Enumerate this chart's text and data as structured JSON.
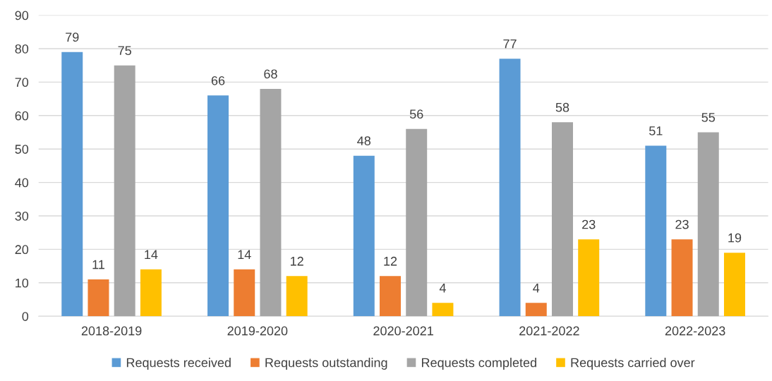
{
  "chart_data": {
    "type": "bar",
    "categories": [
      "2018-2019",
      "2019-2020",
      "2020-2021",
      "2021-2022",
      "2022-2023"
    ],
    "series": [
      {
        "name": "Requests received",
        "color": "#5b9bd5",
        "values": [
          79,
          66,
          48,
          77,
          51
        ]
      },
      {
        "name": "Requests outstanding",
        "color": "#ed7d31",
        "values": [
          11,
          14,
          12,
          4,
          23
        ]
      },
      {
        "name": "Requests completed",
        "color": "#a5a5a5",
        "values": [
          75,
          68,
          56,
          58,
          55
        ]
      },
      {
        "name": "Requests carried over",
        "color": "#ffc000",
        "values": [
          14,
          12,
          4,
          23,
          19
        ]
      }
    ],
    "ylim": [
      0,
      90
    ],
    "yticks": [
      0,
      10,
      20,
      30,
      40,
      50,
      60,
      70,
      80,
      90
    ],
    "grid": "y",
    "legend": "bottom",
    "data_labels": true
  }
}
